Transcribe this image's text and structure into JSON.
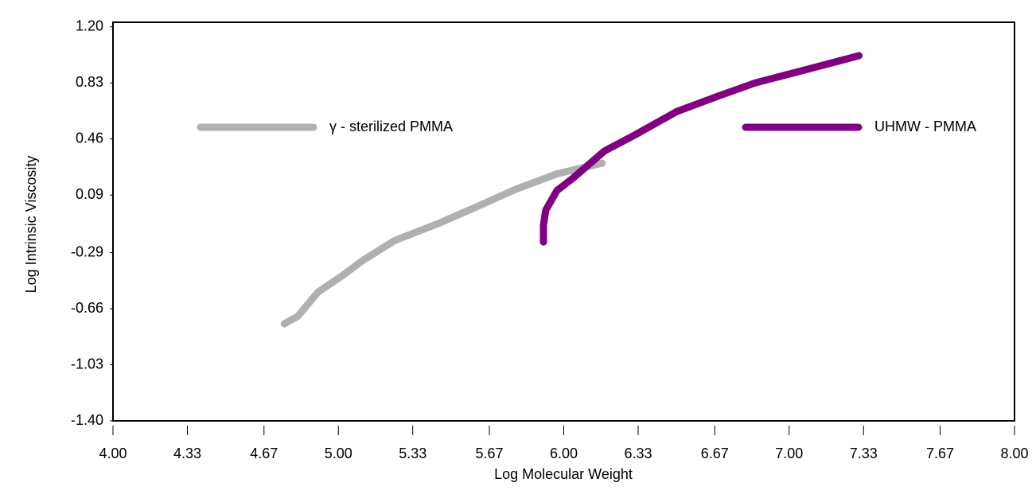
{
  "chart_data": {
    "type": "line",
    "xlabel": "Log Molecular Weight",
    "ylabel": "Log Intrinsic Viscosity",
    "xlim": [
      4,
      8
    ],
    "ylim": [
      -1.4,
      1.23
    ],
    "xticks": [
      {
        "value": 4,
        "label": "4.00"
      },
      4.33,
      4.67,
      {
        "value": 5,
        "label": "5.00"
      },
      5.33,
      5.67,
      {
        "value": 6,
        "label": "6.00"
      },
      6.33,
      6.67,
      {
        "value": 7,
        "label": "7.00"
      },
      7.33,
      7.67,
      {
        "value": 8,
        "label": "8.00"
      }
    ],
    "yticks": [
      {
        "value": 1.2,
        "label": "1.20"
      },
      0.83,
      0.46,
      0.09,
      -0.29,
      -0.66,
      -1.03,
      {
        "value": -1.4,
        "label": "-1.40"
      }
    ],
    "series": [
      {
        "name": "γ - sterilized PMMA",
        "color": "#b0b0b0",
        "x": [
          4.76,
          4.82,
          4.91,
          5.01,
          5.11,
          5.25,
          5.44,
          5.61,
          5.79,
          5.97,
          6.17
        ],
        "values": [
          -0.76,
          -0.71,
          -0.55,
          -0.45,
          -0.34,
          -0.21,
          -0.1,
          0.01,
          0.13,
          0.23,
          0.3
        ]
      },
      {
        "name": "UHMW - PMMA",
        "color": "#800080",
        "x": [
          5.91,
          5.91,
          5.92,
          5.97,
          6.04,
          6.11,
          6.18,
          6.32,
          6.5,
          6.68,
          6.85,
          7.03,
          7.21,
          7.31
        ],
        "values": [
          -0.22,
          -0.11,
          -0.01,
          0.12,
          0.2,
          0.29,
          0.38,
          0.49,
          0.64,
          0.74,
          0.83,
          0.9,
          0.97,
          1.01
        ]
      }
    ]
  }
}
